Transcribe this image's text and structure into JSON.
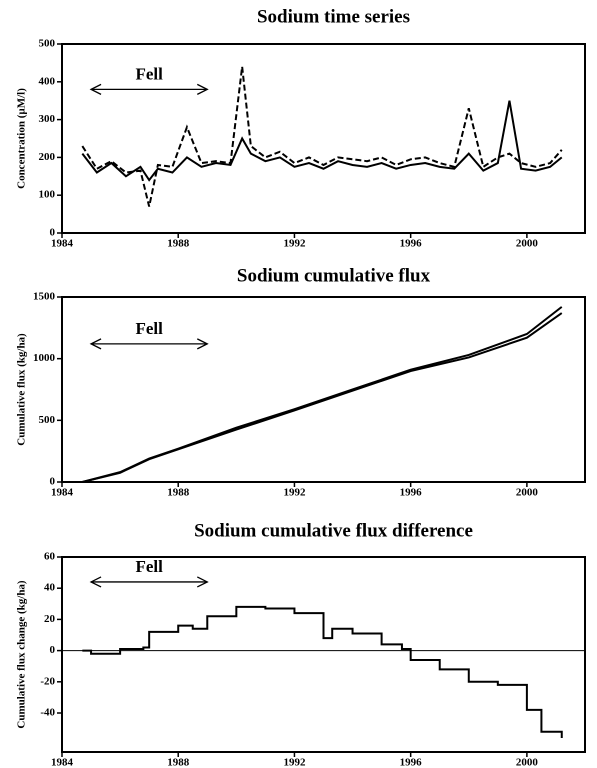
{
  "chart_data": [
    {
      "type": "line",
      "title": "Sodium time series",
      "ylabel": "Concentration (µM/l)",
      "x": [
        1984.7,
        1985.2,
        1985.7,
        1986.2,
        1986.7,
        1987.0,
        1987.3,
        1987.8,
        1988.3,
        1988.8,
        1989.3,
        1989.8,
        1990.2,
        1990.5,
        1991.0,
        1991.5,
        1992.0,
        1992.5,
        1993.0,
        1993.5,
        1994.0,
        1994.5,
        1995.0,
        1995.5,
        1996.0,
        1996.5,
        1997.0,
        1997.5,
        1998.0,
        1998.5,
        1999.0,
        1999.4,
        1999.8,
        2000.3,
        2000.8,
        2001.2
      ],
      "series": [
        {
          "color": "#000000",
          "style": "solid",
          "values": [
            210,
            160,
            185,
            150,
            175,
            140,
            170,
            160,
            200,
            175,
            185,
            180,
            250,
            210,
            190,
            200,
            175,
            185,
            170,
            190,
            180,
            175,
            185,
            170,
            180,
            185,
            175,
            170,
            210,
            165,
            185,
            350,
            170,
            165,
            175,
            200
          ]
        },
        {
          "color": "#000000",
          "style": "dashed",
          "values": [
            230,
            170,
            190,
            160,
            165,
            70,
            180,
            175,
            280,
            185,
            190,
            185,
            440,
            230,
            200,
            215,
            185,
            200,
            180,
            200,
            195,
            190,
            200,
            180,
            195,
            200,
            185,
            175,
            330,
            175,
            200,
            210,
            185,
            175,
            185,
            220
          ]
        }
      ],
      "xlim": [
        1984,
        2002
      ],
      "xticks": [
        1984,
        1988,
        1992,
        1996,
        2000
      ],
      "ylim": [
        0,
        500
      ],
      "yticks": [
        0,
        100,
        200,
        300,
        400,
        500
      ],
      "annotation": {
        "text": "Fell",
        "x_range": [
          1985,
          1989
        ],
        "y": 380
      }
    },
    {
      "type": "line",
      "title": "Sodium cumulative flux",
      "ylabel": "Cumulative flux (kg/ha)",
      "x": [
        1984.7,
        1986,
        1987,
        1988,
        1990,
        1992,
        1994,
        1996,
        1998,
        2000,
        2001.2
      ],
      "series": [
        {
          "color": "#000000",
          "style": "solid",
          "values": [
            0,
            80,
            190,
            270,
            440,
            590,
            750,
            910,
            1030,
            1200,
            1420
          ]
        },
        {
          "color": "#000000",
          "style": "solid",
          "values": [
            0,
            75,
            185,
            265,
            425,
            580,
            740,
            900,
            1010,
            1170,
            1370
          ]
        }
      ],
      "xlim": [
        1984,
        2002
      ],
      "xticks": [
        1984,
        1988,
        1992,
        1996,
        2000
      ],
      "ylim": [
        0,
        1500
      ],
      "yticks": [
        0,
        500,
        1000,
        1500
      ],
      "annotation": {
        "text": "Fell",
        "x_range": [
          1985,
          1989
        ],
        "y": 1120
      }
    },
    {
      "type": "step",
      "title": "Sodium cumulative flux difference",
      "ylabel": "Cumulative flux change (kg/ha)",
      "x": [
        1984.7,
        1985,
        1986,
        1986.8,
        1987,
        1988,
        1988.5,
        1989,
        1990,
        1991,
        1992,
        1993,
        1993.3,
        1994,
        1995,
        1995.7,
        1996,
        1997,
        1998,
        1999,
        2000,
        2000.5,
        2001.2
      ],
      "series": [
        {
          "color": "#000000",
          "style": "solid",
          "values": [
            0,
            -2,
            1,
            2,
            12,
            16,
            14,
            22,
            28,
            27,
            24,
            8,
            14,
            11,
            4,
            1,
            -6,
            -12,
            -20,
            -22,
            -38,
            -52,
            -56
          ]
        }
      ],
      "xlim": [
        1984,
        2002
      ],
      "xticks": [
        1984,
        1988,
        1992,
        1996,
        2000
      ],
      "ylim": [
        -65,
        60
      ],
      "yticks": [
        -40,
        -20,
        0,
        20,
        40,
        60
      ],
      "hline": 0,
      "annotation": {
        "text": "Fell",
        "x_range": [
          1985,
          1989
        ],
        "y": 44
      }
    }
  ]
}
